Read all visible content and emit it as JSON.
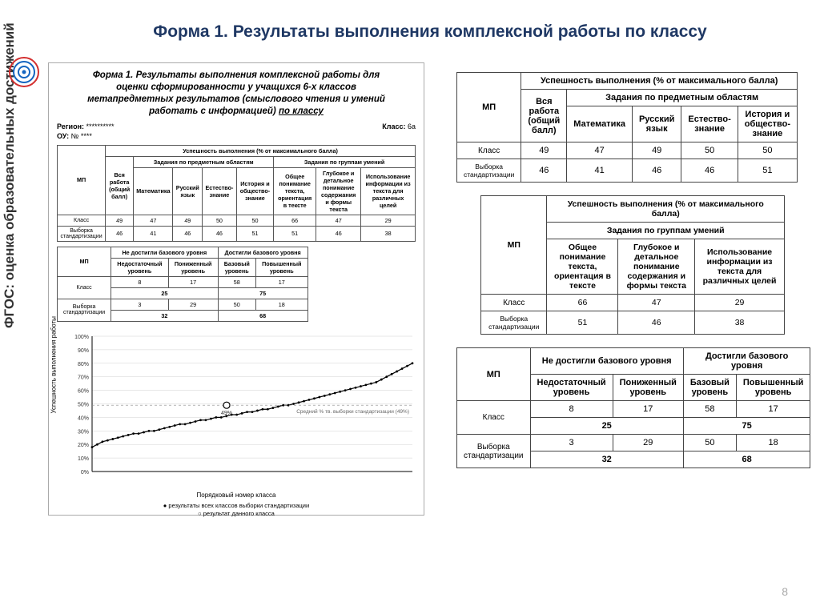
{
  "slide": {
    "title": "Форма 1. Результаты выполнения комплексной работы по классу",
    "sidebar": "ФГОС: оценка образовательных достижений",
    "page_number": "8"
  },
  "logo": {
    "outer_color": "#d32f2f",
    "inner_color": "#1565c0",
    "center_color": "#1565c0"
  },
  "left": {
    "form_title_l1": "Форма 1. Результаты выполнения комплексной работы для",
    "form_title_l2": "оценки сформированности у учащихся 6-х классов",
    "form_title_l3": "метапредметных результатов (смыслового чтения и умений",
    "form_title_l4": "работать с информацией) ",
    "form_title_underline": "по классу",
    "region_label": "Регион:",
    "region_val": "**********",
    "class_label": "Класс:",
    "class_val": "6а",
    "ou_label": "ОУ:",
    "ou_val": "№ ****"
  },
  "table1": {
    "mp": "МП",
    "overall": "Вся работа (общий балл)",
    "header_success": "Успешность выполнения (% от максимального балла)",
    "header_subj": "Задания по предметным областям",
    "header_skills": "Задания по группам умений",
    "cols_subj": [
      "Математика",
      "Русский язык",
      "Естество-знание",
      "История и общество-знание"
    ],
    "cols_skills": [
      "Общее понимание текста, ориентация в тексте",
      "Глубокое и детальное понимание содержания и формы текста",
      "Использование информации из текста для различных целей"
    ],
    "row_class": "Класс",
    "row_sample": "Выборка стандартизации",
    "class_vals": [
      "49",
      "47",
      "49",
      "50",
      "50",
      "66",
      "47",
      "29"
    ],
    "sample_vals": [
      "46",
      "41",
      "46",
      "46",
      "51",
      "51",
      "46",
      "38"
    ]
  },
  "table2": {
    "mp": "МП",
    "not_reached": "Не достигли базового уровня",
    "reached": "Достигли базового уровня",
    "cols": [
      "Недостаточный уровень",
      "Пониженный уровень",
      "Базовый уровень",
      "Повышенный уровень"
    ],
    "row_class": "Класс",
    "row_sample": "Выборка стандартизации",
    "class_vals": [
      "8",
      "17",
      "58",
      "17"
    ],
    "class_sum": [
      "25",
      "75"
    ],
    "sample_vals": [
      "3",
      "29",
      "50",
      "18"
    ],
    "sample_sum": [
      "32",
      "68"
    ]
  },
  "chart": {
    "type": "line",
    "ylabel": "Успешность выполнения работы",
    "xlabel": "Порядковый номер класса",
    "ylim": [
      0,
      100
    ],
    "ytick_step": 10,
    "yticks": [
      "0%",
      "10%",
      "20%",
      "30%",
      "40%",
      "50%",
      "60%",
      "70%",
      "80%",
      "90%",
      "100%"
    ],
    "marker_label": "49%",
    "median_label": "Средний % тв. выборки стандартизации (49%)",
    "legend_all": "результаты всех классов выборки стандартизации",
    "legend_this": "результат данного класса",
    "line_color": "#000000",
    "grid_color": "#d0d0d0",
    "background_color": "#ffffff",
    "highlight_x": 0.42,
    "data": [
      18,
      20,
      22,
      23,
      24,
      25,
      26,
      27,
      28,
      28,
      29,
      30,
      30,
      31,
      32,
      33,
      34,
      35,
      35,
      36,
      37,
      38,
      38,
      39,
      40,
      40,
      41,
      42,
      42,
      43,
      44,
      44,
      45,
      46,
      46,
      47,
      48,
      49,
      49,
      50,
      51,
      52,
      53,
      54,
      55,
      56,
      57,
      58,
      59,
      60,
      61,
      62,
      63,
      64,
      65,
      66,
      68,
      70,
      72,
      74,
      76,
      78,
      80
    ]
  },
  "right_t1": {
    "header_success": "Успешность выполнения (% от максимального балла)",
    "header_subj": "Задания по предметным областям",
    "mp": "МП",
    "overall": "Вся работа (общий балл)",
    "cols": [
      "Математика",
      "Русский язык",
      "Естество-знание",
      "История и общество-знание"
    ],
    "row_class": "Класс",
    "row_sample": "Выборка стандартизации",
    "class_vals": [
      "49",
      "47",
      "49",
      "50",
      "50"
    ],
    "sample_vals": [
      "46",
      "41",
      "46",
      "46",
      "51"
    ]
  },
  "right_t2": {
    "header_success": "Успешность выполнения (% от максимального балла)",
    "header_skills": "Задания по группам умений",
    "mp": "МП",
    "cols": [
      "Общее понимание текста, ориентация в тексте",
      "Глубокое и детальное понимание содержания и формы текста",
      "Использование информации из текста для различных целей"
    ],
    "row_class": "Класс",
    "row_sample": "Выборка стандартизации",
    "class_vals": [
      "66",
      "47",
      "29"
    ],
    "sample_vals": [
      "51",
      "46",
      "38"
    ]
  },
  "right_t3": {
    "mp": "МП",
    "not_reached": "Не достигли базового уровня",
    "reached": "Достигли базового уровня",
    "cols": [
      "Недостаточный уровень",
      "Пониженный уровень",
      "Базовый уровень",
      "Повышенный уровень"
    ],
    "row_class": "Класс",
    "row_sample": "Выборка стандартизации",
    "class_vals": [
      "8",
      "17",
      "58",
      "17"
    ],
    "class_sum": [
      "25",
      "75"
    ],
    "sample_vals": [
      "3",
      "29",
      "50",
      "18"
    ],
    "sample_sum": [
      "32",
      "68"
    ]
  }
}
